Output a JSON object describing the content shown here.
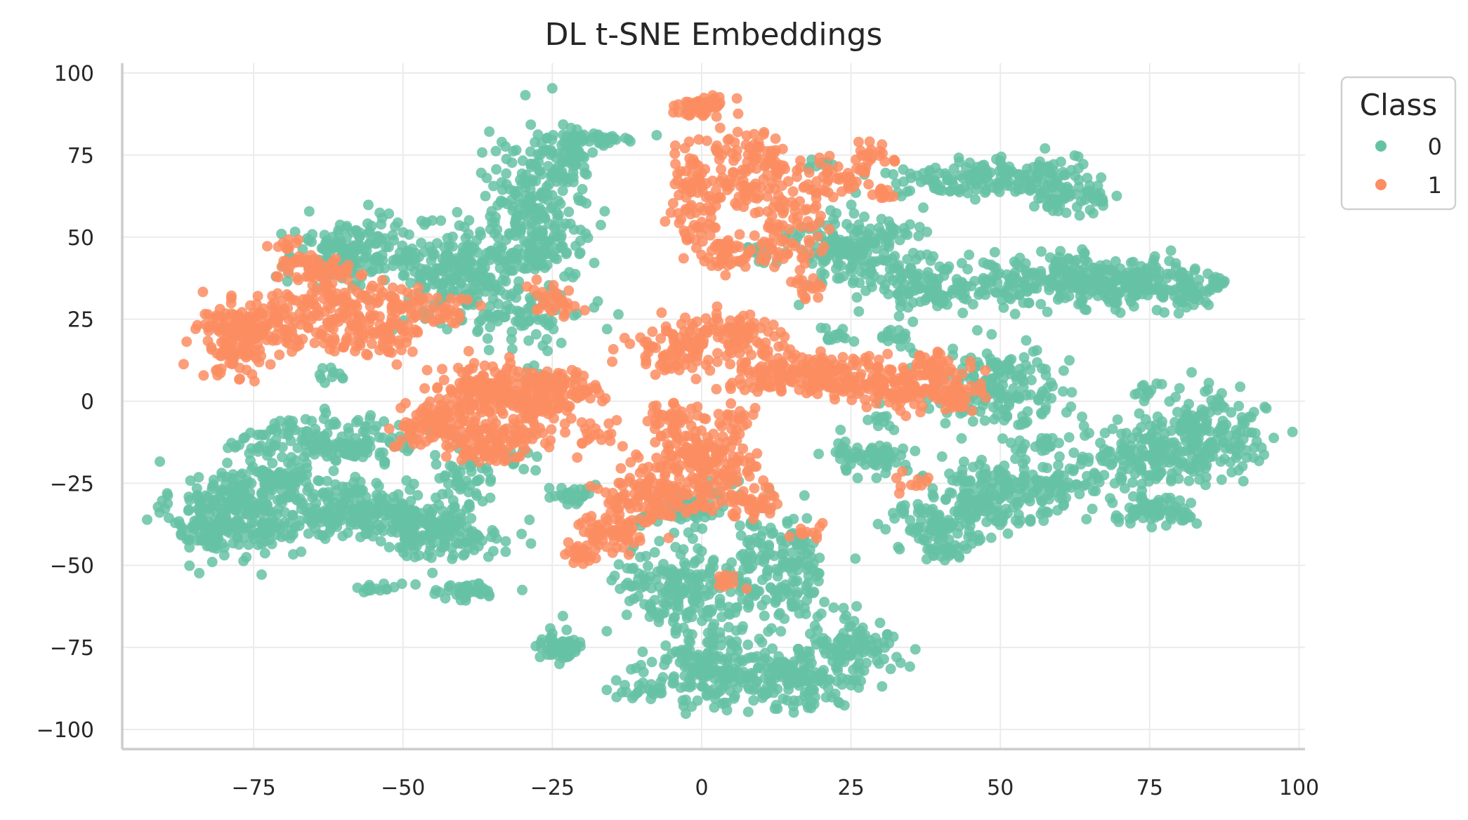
{
  "chart_data": {
    "type": "scatter",
    "title": "DL t-SNE Embeddings",
    "xlabel": "",
    "ylabel": "",
    "xlim": [
      -97,
      101
    ],
    "ylim": [
      -106,
      103
    ],
    "x_ticks": [
      -75,
      -50,
      -25,
      0,
      25,
      50,
      75,
      100
    ],
    "x_tick_labels": [
      "−75",
      "−50",
      "−25",
      "0",
      "25",
      "50",
      "75",
      "100"
    ],
    "y_ticks": [
      100,
      75,
      50,
      25,
      0,
      -25,
      -50,
      -75,
      -100
    ],
    "y_tick_labels": [
      "100",
      "75",
      "50",
      "25",
      "0",
      "−25",
      "−50",
      "−75",
      "−100"
    ],
    "grid": true,
    "legend": {
      "title": "Class",
      "placement": "upper-right-outside"
    },
    "series": [
      {
        "name": "0",
        "color": "#66c2a5",
        "clusters": [
          [
            -78,
            -33,
            7,
            10,
            260
          ],
          [
            -58,
            -33,
            10,
            6,
            240
          ],
          [
            -44,
            -40,
            7,
            5,
            150
          ],
          [
            -62,
            -12,
            10,
            5,
            170
          ],
          [
            -40,
            -25,
            4,
            6,
            50
          ],
          [
            -58,
            45,
            8,
            7,
            170
          ],
          [
            -40,
            40,
            6,
            9,
            200
          ],
          [
            -28,
            58,
            6,
            15,
            230
          ],
          [
            -30,
            25,
            7,
            5,
            70
          ],
          [
            -22,
            76,
            3,
            6,
            60
          ],
          [
            -17,
            80,
            4,
            1,
            30
          ],
          [
            -40,
            -58,
            5,
            2,
            40
          ],
          [
            -55,
            -57,
            2,
            1,
            15
          ],
          [
            -24,
            -75,
            3,
            3,
            50
          ],
          [
            -4,
            -58,
            8,
            10,
            170
          ],
          [
            12,
            -52,
            7,
            12,
            200
          ],
          [
            2,
            -82,
            7,
            8,
            180
          ],
          [
            16,
            -85,
            6,
            6,
            140
          ],
          [
            26,
            -74,
            5,
            6,
            90
          ],
          [
            -10,
            -88,
            3,
            2,
            20
          ],
          [
            -2,
            -32,
            5,
            5,
            70
          ],
          [
            -22,
            -28,
            3,
            2,
            25
          ],
          [
            25,
            47,
            7,
            8,
            180
          ],
          [
            38,
            35,
            6,
            5,
            100
          ],
          [
            48,
            68,
            10,
            4,
            170
          ],
          [
            62,
            62,
            5,
            3,
            60
          ],
          [
            58,
            37,
            9,
            5,
            170
          ],
          [
            72,
            36,
            8,
            5,
            160
          ],
          [
            82,
            34,
            3,
            3,
            40
          ],
          [
            87,
            37,
            1,
            2,
            10
          ],
          [
            50,
            5,
            7,
            8,
            150
          ],
          [
            50,
            -28,
            8,
            7,
            180
          ],
          [
            40,
            -37,
            6,
            4,
            80
          ],
          [
            40,
            -45,
            3,
            2,
            30
          ],
          [
            28,
            -17,
            5,
            4,
            70
          ],
          [
            23,
            20,
            2,
            2,
            15
          ],
          [
            74,
            -17,
            9,
            7,
            180
          ],
          [
            85,
            -10,
            6,
            8,
            150
          ],
          [
            75,
            -33,
            5,
            3,
            70
          ],
          [
            60,
            -25,
            3,
            3,
            30
          ],
          [
            10,
            45,
            2,
            2,
            20
          ],
          [
            33,
            20,
            3,
            4,
            20
          ],
          [
            -31,
            -17,
            2,
            3,
            12
          ],
          [
            -28,
            8,
            2,
            2,
            10
          ],
          [
            -25,
            45,
            4,
            5,
            40
          ],
          [
            -62,
            8,
            2,
            2,
            10
          ],
          [
            -70,
            -25,
            4,
            3,
            50
          ],
          [
            -83,
            -40,
            3,
            3,
            40
          ],
          [
            20,
            72,
            2,
            2,
            10
          ],
          [
            56,
            -13,
            3,
            2,
            20
          ],
          [
            74,
            3,
            2,
            2,
            12
          ],
          [
            30,
            -5,
            2,
            2,
            10
          ]
        ]
      },
      {
        "name": "1",
        "color": "#fc8d62",
        "clusters": [
          [
            -75,
            22,
            6,
            6,
            160
          ],
          [
            -78,
            15,
            3,
            6,
            50
          ],
          [
            -62,
            30,
            6,
            6,
            110
          ],
          [
            -55,
            20,
            6,
            5,
            90
          ],
          [
            -65,
            40,
            4,
            3,
            50
          ],
          [
            -48,
            30,
            5,
            3,
            50
          ],
          [
            -44,
            -7,
            5,
            5,
            120
          ],
          [
            -35,
            3,
            6,
            6,
            170
          ],
          [
            -27,
            0,
            3,
            7,
            90
          ],
          [
            -33,
            -12,
            4,
            4,
            60
          ],
          [
            -20,
            3,
            3,
            4,
            35
          ],
          [
            -38,
            -15,
            3,
            3,
            30
          ],
          [
            -18,
            -10,
            3,
            3,
            20
          ],
          [
            -25,
            30,
            3,
            4,
            30
          ],
          [
            -5,
            15,
            5,
            5,
            80
          ],
          [
            5,
            20,
            5,
            6,
            90
          ],
          [
            18,
            8,
            10,
            4,
            190
          ],
          [
            33,
            5,
            7,
            5,
            140
          ],
          [
            42,
            1,
            3,
            3,
            40
          ],
          [
            -10,
            -30,
            6,
            6,
            100
          ],
          [
            -15,
            -40,
            4,
            4,
            60
          ],
          [
            -20,
            -47,
            2,
            2,
            20
          ],
          [
            0,
            -20,
            6,
            8,
            180
          ],
          [
            -5,
            -5,
            3,
            4,
            40
          ],
          [
            5,
            -5,
            3,
            3,
            20
          ],
          [
            8,
            -30,
            5,
            3,
            40
          ],
          [
            0,
            90,
            3,
            2,
            50
          ],
          [
            -2,
            70,
            3,
            8,
            50
          ],
          [
            8,
            70,
            5,
            8,
            120
          ],
          [
            15,
            55,
            4,
            10,
            80
          ],
          [
            -1,
            55,
            3,
            4,
            30
          ],
          [
            5,
            45,
            4,
            4,
            50
          ],
          [
            22,
            68,
            4,
            4,
            40
          ],
          [
            28,
            75,
            3,
            3,
            20
          ],
          [
            18,
            35,
            2,
            2,
            15
          ],
          [
            35,
            -25,
            2,
            2,
            10
          ],
          [
            18,
            -40,
            3,
            2,
            12
          ],
          [
            5,
            -55,
            2,
            2,
            10
          ],
          [
            -70,
            47,
            2,
            2,
            12
          ],
          [
            -42,
            25,
            2,
            2,
            10
          ],
          [
            30,
            63,
            2,
            2,
            12
          ],
          [
            40,
            12,
            3,
            2,
            20
          ]
        ]
      }
    ]
  }
}
